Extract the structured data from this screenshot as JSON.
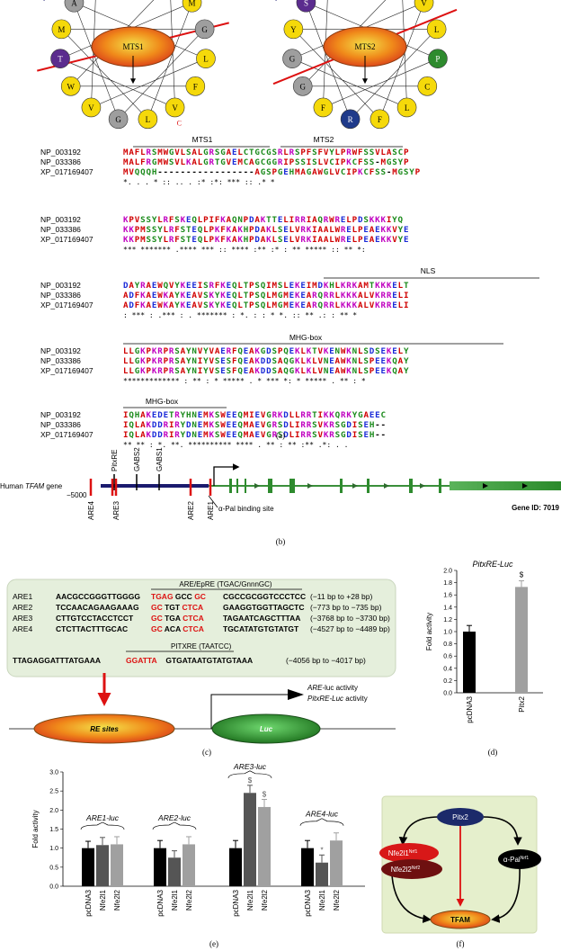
{
  "panel_a": {
    "wheel1": {
      "label": "MTS1",
      "residues": [
        {
          "t": "K",
          "c": "#1f3a8a"
        },
        {
          "t": "A",
          "c": "#9e9e9e"
        },
        {
          "t": "M",
          "c": "#f5d90a"
        },
        {
          "t": "T",
          "c": "#5b2c8e"
        },
        {
          "t": "W",
          "c": "#f5d90a"
        },
        {
          "t": "V",
          "c": "#f5d90a"
        },
        {
          "t": "G",
          "c": "#9e9e9e"
        },
        {
          "t": "L",
          "c": "#f5d90a"
        },
        {
          "t": "V",
          "c": "#f5d90a"
        },
        {
          "t": "F",
          "c": "#f5d90a"
        },
        {
          "t": "L",
          "c": "#f5d90a"
        },
        {
          "t": "G",
          "c": "#9e9e9e"
        },
        {
          "t": "M",
          "c": "#f5d90a"
        },
        {
          "t": "L",
          "c": "#f5d90a"
        }
      ],
      "n_label": "N",
      "c_label": "C"
    },
    "wheel2": {
      "label": "MTS2",
      "residues": [
        {
          "t": "R",
          "c": "#1f3a8a"
        },
        {
          "t": "S",
          "c": "#5b2c8e"
        },
        {
          "t": "Y",
          "c": "#f5d90a"
        },
        {
          "t": "G",
          "c": "#9e9e9e"
        },
        {
          "t": "G",
          "c": "#9e9e9e"
        },
        {
          "t": "F",
          "c": "#f5d90a"
        },
        {
          "t": "R",
          "c": "#1f3a8a"
        },
        {
          "t": "F",
          "c": "#f5d90a"
        },
        {
          "t": "L",
          "c": "#f5d90a"
        },
        {
          "t": "C",
          "c": "#f5d90a"
        },
        {
          "t": "P",
          "c": "#2e8b2e"
        },
        {
          "t": "L",
          "c": "#f5d90a"
        },
        {
          "t": "V",
          "c": "#f5d90a"
        },
        {
          "t": "C",
          "c": "#f5d90a"
        }
      ],
      "n_label": "N"
    },
    "region_labels": {
      "mts1": "MTS1",
      "mts2": "MTS2",
      "nls": "NLS",
      "mhg1": "MHG-box",
      "mhg2": "MHG-box"
    },
    "blocks": [
      {
        "ids": [
          "NP_003192",
          "NP_033386",
          "XP_017169407"
        ],
        "seqs": [
          "MAFLRSMWGVLSALGRSGAELCTGCGSRLRSPFSFVYLPRWFSSVLASCP",
          "MALFRGMWSVLKALGRTGVEMCAGCGGRIPSSISLVCIPKCFSS-MGSYP",
          "MVQQQH-----------------AGSPGEHMAGAWGLVCIPKCFSS-MGSYP"
        ],
        "cons": "*.                    .  .  *  ::  .. . :*  :*:  ***  :: .* *"
      },
      {
        "ids": [
          "NP_003192",
          "NP_033386",
          "XP_017169407"
        ],
        "seqs": [
          "KPVSSYLRFSKEQLPIFKAQNPDAKTTELIRRIAQRWRELPDSKKKIYQ",
          "KKPMSSYLRFSTEQLPKFKAKHPDAKLSELVRKIAALWRELPEAEKKVYE",
          "KKPMSSYLRFSTEQLPKFKAKHPDAKLSELVRKIAALWRELPEAEKKVYE"
        ],
        "cons": "***  *******  .****    ***  ::  ****    :**  :*  :  **      *****    ::  ** *:"
      },
      {
        "ids": [
          "NP_003192",
          "NP_033386",
          "XP_017169407"
        ],
        "seqs": [
          "DAYRAEWQVYKEEISRFKEQLTPSQIMSLEKEIMDKHLKRKAMTKKKELT",
          "ADFKAEWKAYKEAVSKYKEQLTPSQLMGMEKEARQRRLKKKALVKRRELI",
          "ADFKAEWKAYKEAVSKYKEQLTPSQLMGMEKEARQRRLKKKALVKRRELI"
        ],
        "cons": "  :  ***  :  .***   :  .  *******  :  *.  :  :  *  *.  ::  **  .:  :  **  *"
      },
      {
        "ids": [
          "NP_003192",
          "NP_033386",
          "XP_017169407"
        ],
        "seqs": [
          "LLGKPKRPRSAYNVYVAERFQEAKGDSPQEKLKTVKENWKNLSDSEKELY",
          "LLGKPKRPRSAYNIYVSESFQEAKDDSAQGKLKLVNEAWKNLSPEEKQAY",
          "LLGKPKRPRSAYNIYVSESFQEAKDDSAQGKLKLVNEAWKNLSPEEKQAY"
        ],
        "cons": "*************  :  **  :  *  *****  .  *  ***    *:  *  *****    .  **  :  *"
      },
      {
        "ids": [
          "NP_003192",
          "NP_033386",
          "XP_017169407"
        ],
        "seqs": [
          "IQHAKEDETRYHNEMKSWEEQMIEVGRKDLLRRTIKKQRKYGAEEC",
          "IQLAKDDRIRYDNEMKSWEEQMAEVGRSDLIRRSVKRSGDISEH--",
          "IQLAKDDRIRYDNEMKSWEEQMAEVGRSDLIRRSVKRSGDISEH--"
        ],
        "cons": "**  **  :  *.  **.  **********   ****  .  **  :  **  :**  .*:  .  ."
      }
    ],
    "caption": "(a)"
  },
  "panel_b": {
    "gene_label_prefix": "Human ",
    "gene_label_italic": "TFAM",
    "gene_label_suffix": " gene",
    "pos_label": "−5000",
    "top_labels": [
      "PitxRE",
      "GABS2",
      "GABS1"
    ],
    "bottom_labels": [
      "ARE4",
      "ARE3",
      "ARE2",
      "ARE1"
    ],
    "apal_label": "α-Pal binding site",
    "gene_id": "Gene ID: 7019",
    "caption": "(b)"
  },
  "panel_c": {
    "title_are": "ARE/EpRE (TGAC/GnnnGC)",
    "title_pitx": "PITXRE (TAATCC)",
    "rows": [
      {
        "name": "ARE1",
        "pre": "AACGCCGGGTTGGGG",
        "r1": "TGAG",
        "mid": " GCC ",
        "r2": "GC",
        "post": "CGCCGCGGTCCCTCC",
        "pos": "(−11 bp to +28 bp)"
      },
      {
        "name": "ARE2",
        "pre": "TCCAACAGAAGAAAG",
        "r1": "GC",
        "mid": " TGT ",
        "r2": "CTCA",
        "post": "GAAGGTGGTTAGCTC",
        "pos": "(−773 bp to −735 bp)"
      },
      {
        "name": "ARE3",
        "pre": "CTTGTCCTACCTCCT",
        "r1": "GC",
        "mid": " TGA ",
        "r2": "CTCA",
        "post": "TAGAATCAGCTTTAA",
        "pos": "(−3768 bp to −3730 bp)"
      },
      {
        "name": "ARE4",
        "pre": "CTCTTACTTTGCAC",
        "r1": "GC",
        "mid": " ACA ",
        "r2": "CTCA",
        "post": "TGCATATGTGTATGT",
        "pos": "(−4527 bp to −4489 bp)"
      }
    ],
    "pitx_row": {
      "pre": "TTAGAGGATTTATGAAA",
      "r": "GGATTA",
      "post": "GTGATAATGTATGTAAA",
      "pos": "(−4056 bp to −4017 bp)"
    },
    "re_sites": "RE sites",
    "luc": "Luc",
    "are_act_i": "ARE",
    "are_act_r": "-luc activity",
    "pitx_act_i": "PitxRE-Luc",
    "pitx_act_r": " activity",
    "caption": "(c)"
  },
  "chart_data": [
    {
      "type": "bar",
      "title": "PitxRE-Luc",
      "ylabel": "Fold activity",
      "ylim": [
        0,
        2.0
      ],
      "yticks": [
        "0.0",
        "0.2",
        "0.4",
        "0.6",
        "0.8",
        "1.0",
        "1.2",
        "1.4",
        "1.6",
        "1.8",
        "2.0"
      ],
      "categories": [
        "pcDNA3",
        "Pitx2"
      ],
      "values": [
        1.0,
        1.73
      ],
      "errors": [
        0.1,
        0.1
      ],
      "colors": [
        "#000000",
        "#a0a0a0"
      ],
      "marks": [
        "",
        "$"
      ],
      "caption": "(d)"
    },
    {
      "type": "bar",
      "ylabel": "Fold activity",
      "ylim": [
        0,
        3.0
      ],
      "yticks": [
        "0.0",
        "0.5",
        "1.0",
        "1.5",
        "2.0",
        "2.5",
        "3.0"
      ],
      "groups": [
        {
          "label": "ARE1-luc",
          "categories": [
            "pcDNA3",
            "Nfe2l1",
            "Nfe2l2"
          ],
          "values": [
            1.0,
            1.08,
            1.1
          ],
          "errors": [
            0.18,
            0.2,
            0.2
          ],
          "marks": [
            "",
            "",
            ""
          ]
        },
        {
          "label": "ARE2-luc",
          "categories": [
            "pcDNA3",
            "Nfe2l1",
            "Nfe2l2"
          ],
          "values": [
            1.0,
            0.75,
            1.1
          ],
          "errors": [
            0.2,
            0.18,
            0.2
          ],
          "marks": [
            "",
            "",
            ""
          ]
        },
        {
          "label": "ARE3-luc",
          "categories": [
            "pcDNA3",
            "Nfe2l1",
            "Nfe2l2"
          ],
          "values": [
            1.0,
            2.45,
            2.08
          ],
          "errors": [
            0.2,
            0.2,
            0.2
          ],
          "marks": [
            "",
            "$",
            "$"
          ]
        },
        {
          "label": "ARE4-luc",
          "categories": [
            "pcDNA3",
            "Nfe2l1",
            "Nfe2l2"
          ],
          "values": [
            1.0,
            0.62,
            1.2
          ],
          "errors": [
            0.2,
            0.2,
            0.2
          ],
          "marks": [
            "",
            "*",
            ""
          ]
        }
      ],
      "colors": [
        "#000000",
        "#555555",
        "#a0a0a0"
      ],
      "caption": "(e)"
    }
  ],
  "panel_f": {
    "pitx2": "Pitx2",
    "nfe2l1": "Nfe2l1",
    "nfe2l1_sup": "Nrf1",
    "nfe2l2": "Nfe2l2",
    "nfe2l2_sup": "Nrf2",
    "apal": "α-Pal",
    "apal_sup": "Nrf1",
    "tfam": "TFAM",
    "caption": "(f)"
  }
}
